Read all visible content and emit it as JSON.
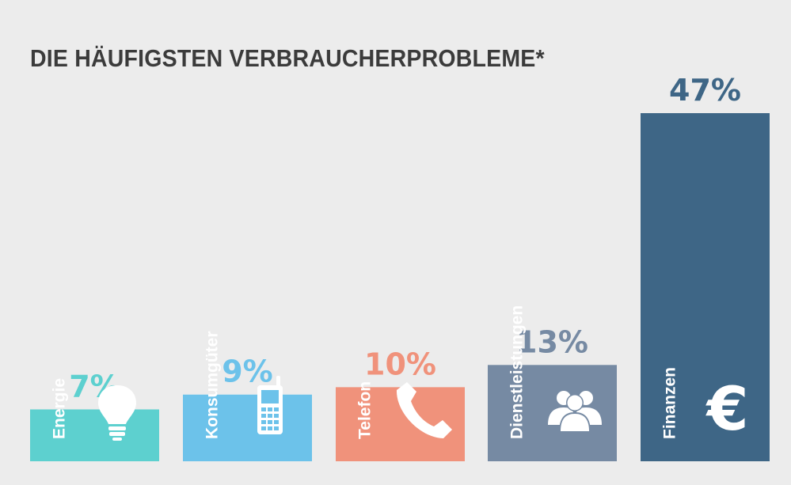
{
  "title": "DIE HÄUFIGSTEN VERBRAUCHERPROBLEME*",
  "chart_data": {
    "type": "bar",
    "title": "DIE HÄUFIGSTEN VERBRAUCHERPROBLEME*",
    "categories": [
      "Energie",
      "Konsumgüter",
      "Telefon",
      "Dienstleistungen",
      "Finanzen"
    ],
    "values": [
      7,
      9,
      10,
      13,
      47
    ],
    "value_labels": [
      "7%",
      "9%",
      "10%",
      "13%",
      "47%"
    ],
    "unit": "%",
    "colors": [
      "#5dd0cf",
      "#6cc2ea",
      "#f0927b",
      "#768aa3",
      "#3e6686"
    ],
    "icons": [
      "lightbulb-icon",
      "mobile-phone-icon",
      "telephone-handset-icon",
      "people-group-icon",
      "euro-icon"
    ],
    "grid": false,
    "legend": "none"
  }
}
